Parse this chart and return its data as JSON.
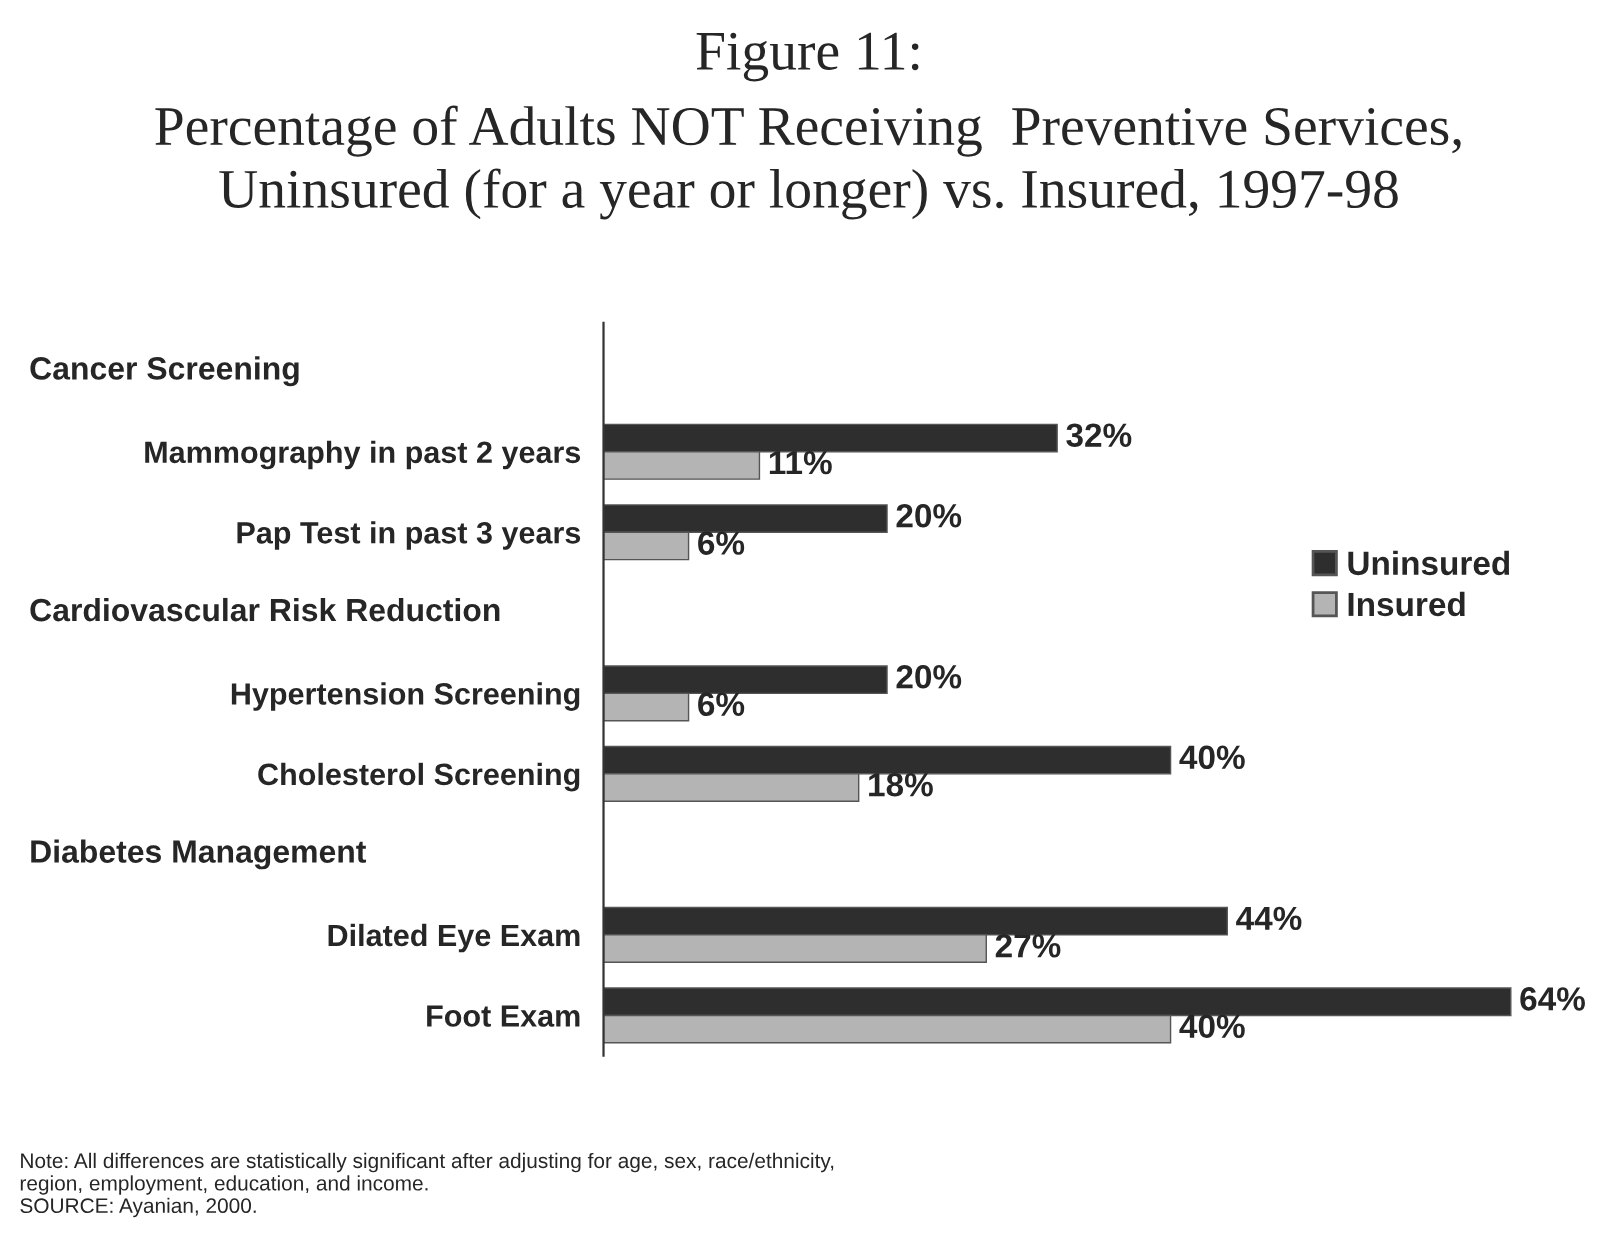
{
  "chart_data": {
    "type": "bar",
    "orientation": "horizontal",
    "title": "Figure 11:",
    "subtitle": "Percentage of Adults NOT Receiving  Preventive Services,\nUninsured (for a year or longer) vs. Insured, 1997-98",
    "categories": [
      null,
      "Mammography in past 2 years",
      "Pap Test in past 3 years",
      null,
      "Hypertension Screening",
      "Cholesterol Screening",
      null,
      "Dilated Eye Exam",
      "Foot Exam"
    ],
    "series": [
      {
        "name": "Uninsured",
        "color": "#2e2e2e",
        "values": [
          null,
          32,
          20,
          null,
          20,
          40,
          null,
          44,
          64
        ],
        "value_labels": [
          null,
          "32%",
          "20%",
          null,
          "20%",
          "40%",
          null,
          "44%",
          "64%"
        ]
      },
      {
        "name": "Insured",
        "color": "#b4b4b4",
        "values": [
          null,
          11,
          6,
          null,
          6,
          18,
          null,
          27,
          40
        ],
        "value_labels": [
          null,
          "11%",
          "6%",
          null,
          "6%",
          "18%",
          null,
          "27%",
          "40%"
        ]
      }
    ],
    "legend": "right",
    "annotations": [
      "Cancer Screening",
      "Cardiovascular Risk Reduction",
      "Diabetes Management",
      "Note: All differences are statistically significant after adjusting for age, sex, race/ethnicity,\nregion, employment, education, and income.\nSOURCE: Ayanian, 2000."
    ]
  }
}
